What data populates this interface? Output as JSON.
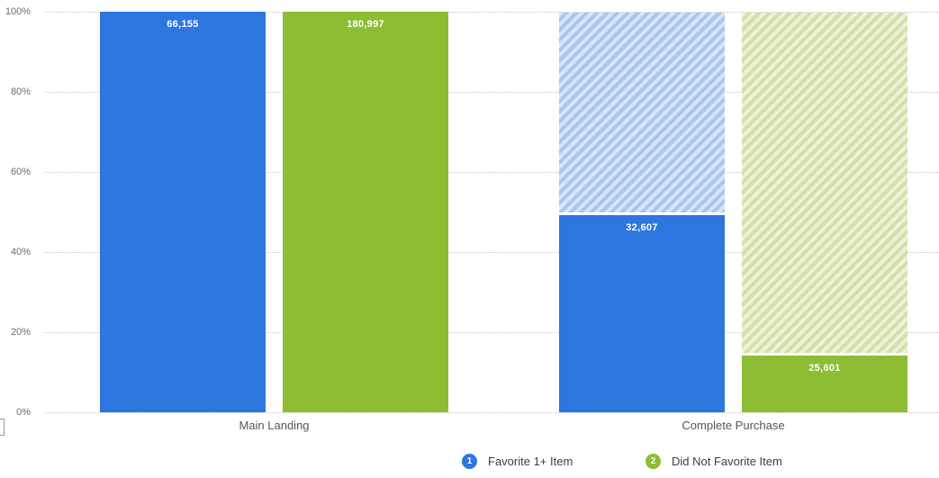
{
  "chart_data": {
    "type": "bar",
    "subtype": "grouped-funnel-percentage",
    "title": "",
    "categories": [
      "Main Landing",
      "Complete Purchase"
    ],
    "series": [
      {
        "name": "Favorite 1+ Item",
        "badge": "1",
        "color": "#2e76e0",
        "hatch_light": "#d8e5f8",
        "hatch_dark": "#a8c6ee",
        "values": [
          66155,
          32607
        ],
        "value_labels": [
          "66,155",
          "32,607"
        ],
        "percent_of_first": [
          100,
          49.3
        ]
      },
      {
        "name": "Did Not Favorite Item",
        "badge": "2",
        "color": "#8cbd33",
        "hatch_light": "#ecf2da",
        "hatch_dark": "#d2e0a6",
        "values": [
          180997,
          25601
        ],
        "value_labels": [
          "180,997",
          "25,601"
        ],
        "percent_of_first": [
          100,
          14.1
        ]
      }
    ],
    "ylabel": "",
    "ylim": [
      0,
      100
    ],
    "yticks": [
      0,
      20,
      40,
      60,
      80,
      100
    ],
    "ytick_labels": [
      "0%",
      "20%",
      "40%",
      "60%",
      "80%",
      "100%"
    ],
    "grid": "horizontal-dotted",
    "legend_position": "bottom-center"
  },
  "legend": {
    "items": [
      {
        "badge": "1",
        "label": "Favorite 1+ Item",
        "color": "#2e76e0"
      },
      {
        "badge": "2",
        "label": "Did Not Favorite Item",
        "color": "#8cbd33"
      }
    ]
  }
}
